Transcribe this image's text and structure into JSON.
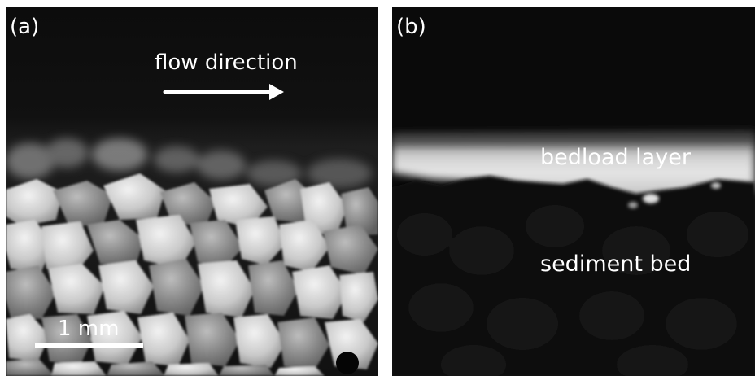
{
  "panel_a": {
    "letter": "(a)",
    "flow_text": "flow direction",
    "scale_text": "1 mm"
  },
  "panel_b": {
    "letter": "(b)",
    "layer_label": "bedload layer",
    "bed_label": "sediment bed"
  },
  "colors": {
    "background": "#0b0b0b",
    "grain": "#cfcfcf",
    "annotation": "#ffffff",
    "bedload_glow": "#e8e8e8"
  }
}
